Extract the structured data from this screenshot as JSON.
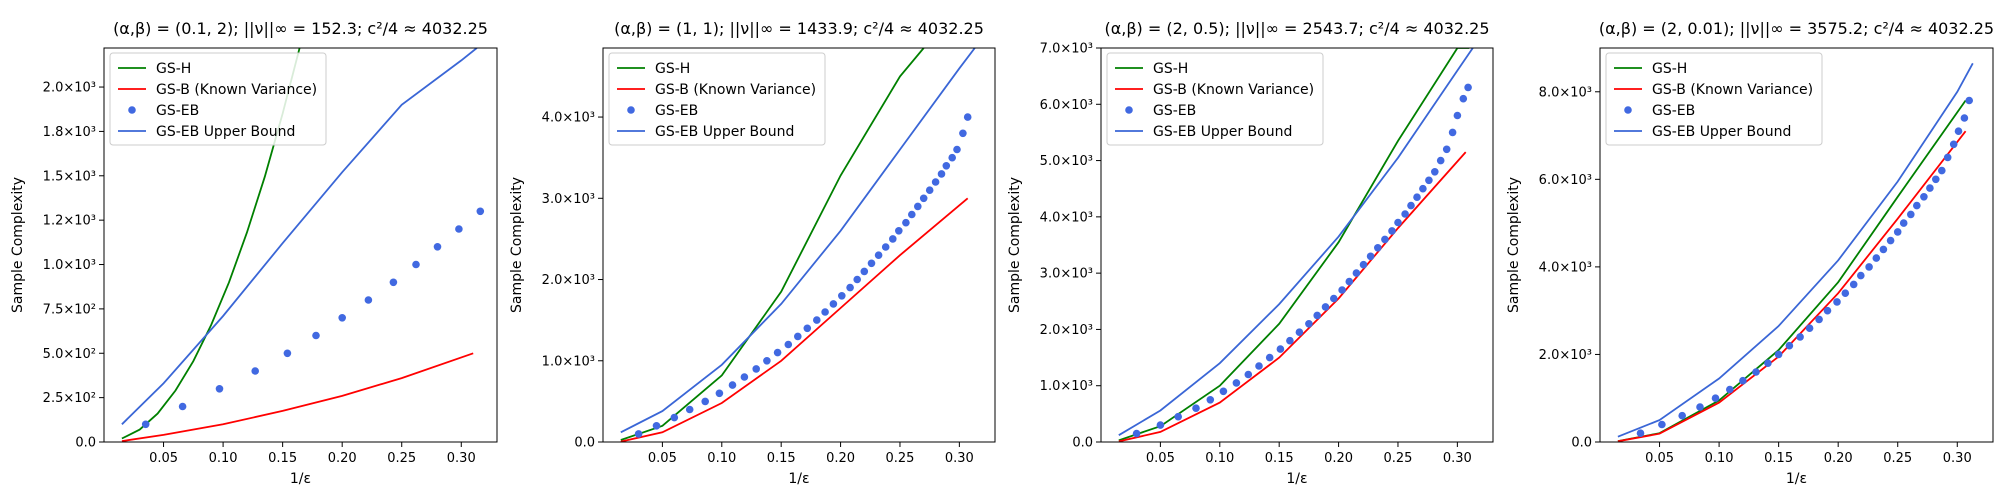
{
  "chart_data": [
    {
      "type": "line",
      "title": "(α,β) = (0.1, 2); ||ν||∞ = 152.3; c²/4 ≈ 4032.25",
      "xlabel": "1/ε",
      "ylabel": "Sample Complexity",
      "xlim": [
        0.0,
        0.33
      ],
      "ylim": [
        0,
        2220
      ],
      "xticks": [
        0.05,
        0.1,
        0.15,
        0.2,
        0.25,
        0.3
      ],
      "xtick_labels": [
        "0.05",
        "0.10",
        "0.15",
        "0.20",
        "0.25",
        "0.30"
      ],
      "yticks": [
        0,
        250,
        500,
        750,
        1000,
        1250,
        1500,
        1750,
        2000
      ],
      "ytick_labels": [
        "0.0",
        "2.5×10²",
        "5.0×10²",
        "7.5×10²",
        "1.0×10³",
        "1.2×10³",
        "1.5×10³",
        "1.8×10³",
        "2.0×10³"
      ],
      "legend_position": "top-left",
      "series": [
        {
          "name": "GS-H",
          "kind": "line",
          "color": "#008000",
          "x": [
            0.015,
            0.03,
            0.045,
            0.06,
            0.075,
            0.09,
            0.105,
            0.12,
            0.135,
            0.15,
            0.165
          ],
          "y": [
            20,
            70,
            160,
            290,
            455,
            660,
            900,
            1180,
            1495,
            1850,
            2240
          ]
        },
        {
          "name": "GS-B (Known Variance)",
          "kind": "line",
          "color": "#ff0000",
          "x": [
            0.015,
            0.05,
            0.1,
            0.15,
            0.2,
            0.25,
            0.31
          ],
          "y": [
            5,
            40,
            100,
            175,
            260,
            360,
            500
          ]
        },
        {
          "name": "GS-EB",
          "kind": "scatter",
          "color": "#4169e1",
          "x": [
            0.035,
            0.066,
            0.097,
            0.127,
            0.154,
            0.178,
            0.2,
            0.222,
            0.243,
            0.262,
            0.28,
            0.298,
            0.316
          ],
          "y": [
            100,
            200,
            300,
            400,
            500,
            600,
            700,
            800,
            900,
            1000,
            1100,
            1200,
            1300
          ]
        },
        {
          "name": "GS-EB Upper Bound",
          "kind": "line",
          "color": "#3a66d6",
          "x": [
            0.015,
            0.05,
            0.1,
            0.15,
            0.2,
            0.25,
            0.3,
            0.313
          ],
          "y": [
            100,
            330,
            710,
            1120,
            1520,
            1900,
            2150,
            2220
          ]
        }
      ]
    },
    {
      "type": "line",
      "title": "(α,β) = (1, 1); ||ν||∞ = 1433.9; c²/4 ≈ 4032.25",
      "xlabel": "1/ε",
      "ylabel": "Sample Complexity",
      "xlim": [
        0.0,
        0.33
      ],
      "ylim": [
        0,
        4850
      ],
      "xticks": [
        0.05,
        0.1,
        0.15,
        0.2,
        0.25,
        0.3
      ],
      "xtick_labels": [
        "0.05",
        "0.10",
        "0.15",
        "0.20",
        "0.25",
        "0.30"
      ],
      "yticks": [
        0,
        1000,
        2000,
        3000,
        4000
      ],
      "ytick_labels": [
        "0.0",
        "1.0×10³",
        "2.0×10³",
        "3.0×10³",
        "4.0×10³"
      ],
      "legend_position": "top-left",
      "series": [
        {
          "name": "GS-H",
          "kind": "line",
          "color": "#008000",
          "x": [
            0.015,
            0.05,
            0.1,
            0.15,
            0.2,
            0.25,
            0.27
          ],
          "y": [
            25,
            200,
            820,
            1850,
            3280,
            4500,
            4850
          ]
        },
        {
          "name": "GS-B (Known Variance)",
          "kind": "line",
          "color": "#ff0000",
          "x": [
            0.015,
            0.05,
            0.1,
            0.15,
            0.2,
            0.25,
            0.307
          ],
          "y": [
            5,
            120,
            480,
            1000,
            1650,
            2300,
            3000
          ]
        },
        {
          "name": "GS-EB",
          "kind": "scatter",
          "color": "#4169e1",
          "x": [
            0.03,
            0.045,
            0.06,
            0.073,
            0.086,
            0.098,
            0.109,
            0.119,
            0.129,
            0.138,
            0.147,
            0.156,
            0.164,
            0.172,
            0.18,
            0.187,
            0.194,
            0.201,
            0.208,
            0.214,
            0.22,
            0.226,
            0.232,
            0.238,
            0.244,
            0.249,
            0.255,
            0.26,
            0.265,
            0.27,
            0.275,
            0.28,
            0.285,
            0.289,
            0.294,
            0.298,
            0.303,
            0.307
          ],
          "y": [
            100,
            200,
            300,
            400,
            500,
            600,
            700,
            800,
            900,
            1000,
            1100,
            1200,
            1300,
            1400,
            1500,
            1600,
            1700,
            1800,
            1900,
            2000,
            2100,
            2200,
            2300,
            2400,
            2500,
            2600,
            2700,
            2800,
            2900,
            3000,
            3100,
            3200,
            3300,
            3400,
            3500,
            3600,
            3800,
            4000
          ]
        },
        {
          "name": "GS-EB Upper Bound",
          "kind": "line",
          "color": "#3a66d6",
          "x": [
            0.015,
            0.05,
            0.1,
            0.15,
            0.2,
            0.25,
            0.3,
            0.313
          ],
          "y": [
            120,
            380,
            950,
            1700,
            2600,
            3600,
            4600,
            4850
          ]
        }
      ]
    },
    {
      "type": "line",
      "title": "(α,β) = (2, 0.5); ||ν||∞ = 2543.7; c²/4 ≈ 4032.25",
      "xlabel": "1/ε",
      "ylabel": "Sample Complexity",
      "xlim": [
        0.0,
        0.33
      ],
      "ylim": [
        0,
        7000
      ],
      "xticks": [
        0.05,
        0.1,
        0.15,
        0.2,
        0.25,
        0.3
      ],
      "xtick_labels": [
        "0.05",
        "0.10",
        "0.15",
        "0.20",
        "0.25",
        "0.30"
      ],
      "yticks": [
        0,
        1000,
        2000,
        3000,
        4000,
        5000,
        6000,
        7000
      ],
      "ytick_labels": [
        "0.0",
        "1.0×10³",
        "2.0×10³",
        "3.0×10³",
        "4.0×10³",
        "5.0×10³",
        "6.0×10³",
        "7.0×10³"
      ],
      "legend_position": "top-left",
      "series": [
        {
          "name": "GS-H",
          "kind": "line",
          "color": "#008000",
          "x": [
            0.015,
            0.05,
            0.1,
            0.15,
            0.2,
            0.25,
            0.3,
            0.31
          ],
          "y": [
            30,
            280,
            1000,
            2100,
            3550,
            5350,
            7000,
            7000
          ]
        },
        {
          "name": "GS-B (Known Variance)",
          "kind": "line",
          "color": "#ff0000",
          "x": [
            0.015,
            0.05,
            0.1,
            0.15,
            0.2,
            0.25,
            0.307
          ],
          "y": [
            10,
            180,
            700,
            1500,
            2550,
            3800,
            5150
          ]
        },
        {
          "name": "GS-EB",
          "kind": "scatter",
          "color": "#4169e1",
          "x": [
            0.03,
            0.05,
            0.065,
            0.08,
            0.092,
            0.103,
            0.114,
            0.124,
            0.133,
            0.142,
            0.151,
            0.159,
            0.167,
            0.175,
            0.182,
            0.189,
            0.196,
            0.203,
            0.209,
            0.215,
            0.221,
            0.227,
            0.233,
            0.239,
            0.245,
            0.25,
            0.256,
            0.261,
            0.266,
            0.271,
            0.276,
            0.281,
            0.286,
            0.291,
            0.296,
            0.3,
            0.305,
            0.309
          ],
          "y": [
            150,
            300,
            450,
            600,
            750,
            900,
            1050,
            1200,
            1350,
            1500,
            1650,
            1800,
            1950,
            2100,
            2250,
            2400,
            2550,
            2700,
            2850,
            3000,
            3150,
            3300,
            3450,
            3600,
            3750,
            3900,
            4050,
            4200,
            4350,
            4500,
            4650,
            4800,
            5000,
            5200,
            5500,
            5800,
            6100,
            6300
          ]
        },
        {
          "name": "GS-EB Upper Bound",
          "kind": "line",
          "color": "#3a66d6",
          "x": [
            0.015,
            0.05,
            0.1,
            0.15,
            0.2,
            0.25,
            0.3,
            0.313
          ],
          "y": [
            120,
            560,
            1400,
            2450,
            3650,
            5050,
            6600,
            7000
          ]
        }
      ]
    },
    {
      "type": "line",
      "title": "(α,β) = (2, 0.01); ||ν||∞ = 3575.2; c²/4 ≈ 4032.25",
      "xlabel": "1/ε",
      "ylabel": "Sample Complexity",
      "xlim": [
        0.0,
        0.33
      ],
      "ylim": [
        0,
        9000
      ],
      "xticks": [
        0.05,
        0.1,
        0.15,
        0.2,
        0.25,
        0.3
      ],
      "xtick_labels": [
        "0.05",
        "0.10",
        "0.15",
        "0.20",
        "0.25",
        "0.30"
      ],
      "yticks": [
        0,
        2000,
        4000,
        6000,
        8000
      ],
      "ytick_labels": [
        "0.0",
        "2.0×10³",
        "4.0×10³",
        "6.0×10³",
        "8.0×10³"
      ],
      "legend_position": "top-left",
      "series": [
        {
          "name": "GS-H",
          "kind": "line",
          "color": "#008000",
          "x": [
            0.015,
            0.05,
            0.1,
            0.15,
            0.2,
            0.25,
            0.307
          ],
          "y": [
            20,
            200,
            950,
            2100,
            3650,
            5600,
            7800
          ]
        },
        {
          "name": "GS-B (Known Variance)",
          "kind": "line",
          "color": "#ff0000",
          "x": [
            0.015,
            0.05,
            0.1,
            0.15,
            0.2,
            0.25,
            0.307
          ],
          "y": [
            15,
            190,
            900,
            1950,
            3400,
            5100,
            7100
          ]
        },
        {
          "name": "GS-EB",
          "kind": "scatter",
          "color": "#4169e1",
          "x": [
            0.034,
            0.052,
            0.069,
            0.084,
            0.097,
            0.109,
            0.12,
            0.131,
            0.141,
            0.15,
            0.159,
            0.168,
            0.176,
            0.184,
            0.191,
            0.199,
            0.206,
            0.213,
            0.219,
            0.226,
            0.232,
            0.238,
            0.244,
            0.25,
            0.255,
            0.261,
            0.266,
            0.272,
            0.277,
            0.282,
            0.287,
            0.292,
            0.297,
            0.301,
            0.306,
            0.31
          ],
          "y": [
            200,
            400,
            600,
            800,
            1000,
            1200,
            1400,
            1600,
            1800,
            2000,
            2200,
            2400,
            2600,
            2800,
            3000,
            3200,
            3400,
            3600,
            3800,
            4000,
            4200,
            4400,
            4600,
            4800,
            5000,
            5200,
            5400,
            5600,
            5800,
            6000,
            6200,
            6500,
            6800,
            7100,
            7400,
            7800
          ]
        },
        {
          "name": "GS-EB Upper Bound",
          "kind": "line",
          "color": "#3a66d6",
          "x": [
            0.015,
            0.05,
            0.1,
            0.15,
            0.2,
            0.25,
            0.3,
            0.313
          ],
          "y": [
            120,
            500,
            1450,
            2650,
            4150,
            5950,
            8000,
            8650
          ]
        }
      ]
    }
  ]
}
